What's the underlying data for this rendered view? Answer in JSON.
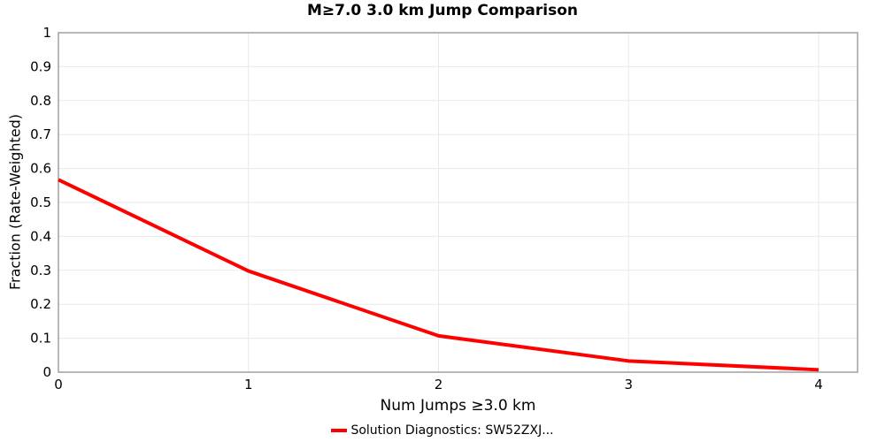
{
  "title": "M≥7.0 3.0 km Jump Comparison",
  "chart_data": {
    "type": "line",
    "title": "M≥7.0 3.0 km Jump Comparison",
    "xlabel": "Num Jumps ≥3.0 km",
    "ylabel": "Fraction (Rate-Weighted)",
    "x": [
      0,
      1,
      2,
      3,
      4
    ],
    "series": [
      {
        "name": "Solution Diagnostics: SW52ZXJ...",
        "values": [
          0.567,
          0.298,
          0.107,
          0.033,
          0.007
        ],
        "color": "#ff0000",
        "line_width": 4
      }
    ],
    "xlim": [
      0,
      4.205
    ],
    "ylim": [
      0,
      1
    ],
    "x_ticks": {
      "values": [
        0,
        1,
        2,
        3,
        4
      ],
      "labels": [
        "0",
        "1",
        "2",
        "3",
        "4"
      ]
    },
    "y_ticks": {
      "values": [
        0,
        0.1,
        0.2,
        0.3,
        0.4,
        0.5,
        0.6,
        0.7,
        0.8,
        0.9,
        1
      ],
      "labels": [
        "0",
        "0.1",
        "0.2",
        "0.3",
        "0.4",
        "0.5",
        "0.6",
        "0.7",
        "0.8",
        "0.9",
        "1"
      ]
    },
    "grid": true,
    "legend_position": "bottom-center"
  },
  "legend": {
    "label": "Solution Diagnostics: SW52ZXJ..."
  },
  "colors": {
    "line": "#ff0000",
    "axis": "#a0a0a0",
    "grid": "#e9e9e9",
    "text": "#000000",
    "background": "#ffffff"
  }
}
